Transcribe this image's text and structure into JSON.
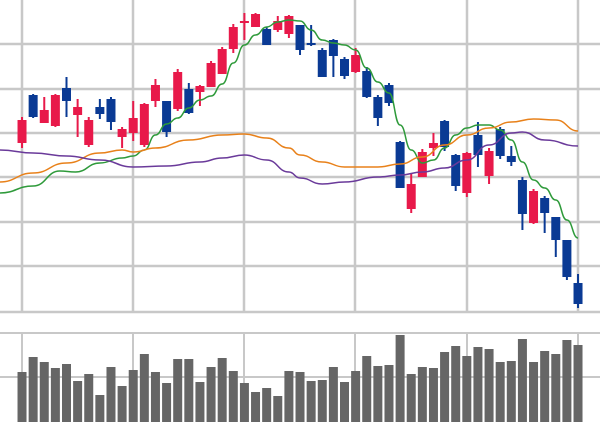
{
  "chart_data": [
    {
      "type": "candlestick",
      "title": "",
      "xlabel": "",
      "ylabel": "",
      "grid": true,
      "legend": "none",
      "ohlc_order": [
        "open",
        "high",
        "low",
        "close"
      ],
      "ylim": [
        8,
        320
      ],
      "colors": {
        "up": "#e8194a",
        "down": "#0a3a94",
        "grid": "#c8c8c8"
      },
      "candles": [
        [
          177,
          203,
          172,
          200
        ],
        [
          225,
          226,
          202,
          203
        ],
        [
          197,
          223,
          197,
          210
        ],
        [
          194,
          226,
          193,
          225
        ],
        [
          232,
          243,
          203,
          219
        ],
        [
          205,
          221,
          183,
          213
        ],
        [
          175,
          203,
          173,
          200
        ],
        [
          213,
          221,
          201,
          206
        ],
        [
          221,
          223,
          190,
          198
        ],
        [
          183,
          193,
          172,
          191
        ],
        [
          187,
          219,
          179,
          202
        ],
        [
          175,
          217,
          173,
          216
        ],
        [
          219,
          241,
          213,
          235
        ],
        [
          219,
          219,
          183,
          188
        ],
        [
          211,
          251,
          209,
          248
        ],
        [
          231,
          237,
          206,
          207
        ],
        [
          228,
          235,
          214,
          234
        ],
        [
          233,
          259,
          233,
          257
        ],
        [
          246,
          273,
          246,
          271
        ],
        [
          271,
          296,
          267,
          293
        ],
        [
          297,
          307,
          280,
          299
        ],
        [
          293,
          307,
          293,
          306
        ],
        [
          291,
          293,
          275,
          275
        ],
        [
          290,
          304,
          288,
          299
        ],
        [
          286,
          305,
          282,
          304
        ],
        [
          295,
          295,
          265,
          270
        ],
        [
          277,
          295,
          274,
          275
        ],
        [
          270,
          272,
          243,
          243
        ],
        [
          280,
          281,
          243,
          264
        ],
        [
          261,
          263,
          241,
          244
        ],
        [
          248,
          272,
          247,
          265
        ],
        [
          249,
          253,
          222,
          223
        ],
        [
          223,
          225,
          194,
          202
        ],
        [
          235,
          237,
          214,
          217
        ],
        [
          178,
          179,
          132,
          132
        ],
        [
          111,
          146,
          107,
          136
        ],
        [
          143,
          171,
          143,
          168
        ],
        [
          172,
          187,
          164,
          177
        ],
        [
          199,
          200,
          169,
          173
        ],
        [
          165,
          166,
          129,
          134
        ],
        [
          127,
          168,
          123,
          167
        ],
        [
          185,
          198,
          153,
          165
        ],
        [
          144,
          172,
          136,
          169
        ],
        [
          191,
          193,
          161,
          164
        ],
        [
          164,
          174,
          154,
          158
        ],
        [
          140,
          143,
          90,
          106
        ],
        [
          97,
          131,
          96,
          129
        ],
        [
          122,
          124,
          87,
          107
        ],
        [
          103,
          103,
          63,
          80
        ],
        [
          80,
          80,
          40,
          43
        ],
        [
          37,
          46,
          12,
          16
        ]
      ],
      "moving_averages": [
        {
          "color": "#2e9a3a",
          "points": [
            [
              -1,
              127
            ],
            [
              2,
              134
            ],
            [
              4.4,
              149
            ],
            [
              5.8,
              148
            ],
            [
              8,
              157
            ],
            [
              10,
              162
            ],
            [
              11,
              164
            ],
            [
              12,
              170
            ],
            [
              13,
              185
            ],
            [
              14,
              196
            ],
            [
              15,
              202
            ],
            [
              16,
              212
            ],
            [
              17,
              220
            ],
            [
              18,
              224
            ],
            [
              19,
              236
            ],
            [
              20,
              257
            ],
            [
              21,
              275
            ],
            [
              22,
              285
            ],
            [
              23,
              293
            ],
            [
              24,
              298
            ],
            [
              25,
              300
            ],
            [
              26,
              299
            ],
            [
              27,
              290
            ],
            [
              28,
              280
            ],
            [
              29,
              277
            ],
            [
              30,
              275
            ],
            [
              31,
              270
            ],
            [
              32,
              252
            ],
            [
              33,
              238
            ],
            [
              34,
              227
            ],
            [
              35,
              195
            ],
            [
              36,
              170
            ],
            [
              37,
              157
            ],
            [
              38,
              160
            ],
            [
              39,
              172
            ],
            [
              40,
              185
            ],
            [
              41,
              192
            ],
            [
              42,
              195
            ],
            [
              43,
              195
            ],
            [
              44,
              190
            ],
            [
              45,
              180
            ],
            [
              46,
              158
            ],
            [
              47,
              140
            ],
            [
              48,
              132
            ],
            [
              49,
              120
            ],
            [
              50,
              100
            ],
            [
              51,
              82
            ]
          ]
        },
        {
          "color": "#e8811a",
          "points": [
            [
              -1,
              138
            ],
            [
              2,
              147
            ],
            [
              5,
              157
            ],
            [
              8,
              167
            ],
            [
              10,
              170
            ],
            [
              11,
              168
            ],
            [
              13,
              172
            ],
            [
              16,
              180
            ],
            [
              19,
              185
            ],
            [
              21,
              186
            ],
            [
              23,
              182
            ],
            [
              25,
              172
            ],
            [
              26,
              165
            ],
            [
              28,
              158
            ],
            [
              30,
              153
            ],
            [
              33,
              153
            ],
            [
              35,
              156
            ],
            [
              37,
              163
            ],
            [
              39,
              175
            ],
            [
              41,
              185
            ],
            [
              43,
              192
            ],
            [
              45,
              198
            ],
            [
              47,
              201
            ],
            [
              49,
              200
            ],
            [
              51,
              189
            ]
          ]
        },
        {
          "color": "#6a3a9a",
          "points": [
            [
              -1,
              170
            ],
            [
              2,
              167
            ],
            [
              5,
              164
            ],
            [
              8,
              160
            ],
            [
              11,
              153
            ],
            [
              14,
              154
            ],
            [
              17,
              158
            ],
            [
              19,
              162
            ],
            [
              21,
              165
            ],
            [
              23,
              160
            ],
            [
              25,
              148
            ],
            [
              26,
              142
            ],
            [
              28,
              136
            ],
            [
              30,
              138
            ],
            [
              33,
              143
            ],
            [
              35,
              145
            ],
            [
              37,
              148
            ],
            [
              39,
              152
            ],
            [
              41,
              160
            ],
            [
              43,
              175
            ],
            [
              45,
              187
            ],
            [
              46,
              188
            ],
            [
              48,
              180
            ],
            [
              51,
              174
            ]
          ]
        }
      ]
    },
    {
      "type": "bar",
      "title": "",
      "xlabel": "",
      "ylabel": "",
      "grid": true,
      "color": "#666666",
      "ylim": [
        0,
        89
      ],
      "values": [
        50,
        65,
        60,
        54,
        58,
        41,
        48,
        27,
        55,
        36,
        52,
        68,
        50,
        39,
        63,
        63,
        40,
        55,
        64,
        51,
        39,
        30,
        34,
        26,
        51,
        50,
        41,
        42,
        55,
        40,
        51,
        66,
        56,
        57,
        87,
        48,
        55,
        54,
        70,
        76,
        66,
        75,
        73,
        60,
        61,
        83,
        60,
        71,
        68,
        82,
        77
      ]
    }
  ]
}
